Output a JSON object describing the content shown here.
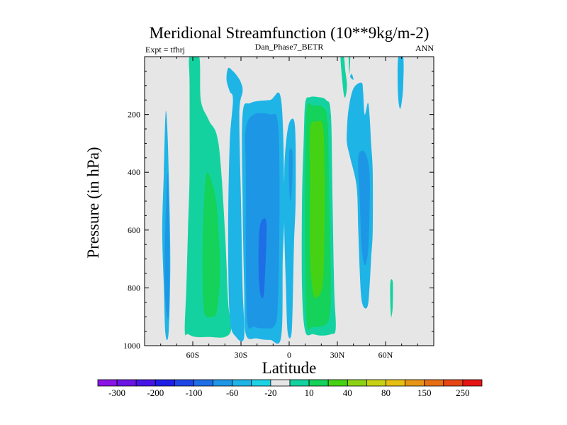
{
  "chart_data": {
    "type": "contour",
    "title": "Meridional Streamfunction (10**9kg/m-2)",
    "left_label": "Expt = tfhrj",
    "subtitle": "Dan_Phase7_BETR",
    "right_label": "ANN",
    "xlabel": "Latitude",
    "ylabel": "Pressure (in hPa)",
    "xlim": [
      -90,
      90
    ],
    "ylim": [
      1000,
      0
    ],
    "x_ticks": [
      {
        "value": -60,
        "label": "60S"
      },
      {
        "value": -30,
        "label": "30S"
      },
      {
        "value": 0,
        "label": "0"
      },
      {
        "value": 30,
        "label": "30N"
      },
      {
        "value": 60,
        "label": "60N"
      }
    ],
    "y_ticks": [
      {
        "value": 200,
        "label": "200"
      },
      {
        "value": 400,
        "label": "400"
      },
      {
        "value": 600,
        "label": "600"
      },
      {
        "value": 800,
        "label": "800"
      },
      {
        "value": 1000,
        "label": "1000"
      }
    ],
    "background_color": "#e6e6e6",
    "colorbar": {
      "colors": [
        "#8a14e6",
        "#6a14e6",
        "#4614e6",
        "#1e1ee6",
        "#1e46e6",
        "#1e6ee6",
        "#1e96e6",
        "#1eb4e6",
        "#1ed2e6",
        "#e6e6e6",
        "#14d2a0",
        "#14d25a",
        "#46d214",
        "#8cd214",
        "#c8d214",
        "#e6be14",
        "#e69614",
        "#e66e14",
        "#e64614",
        "#e61414"
      ],
      "tick_labels": [
        "-300",
        "-200",
        "-100",
        "-60",
        "-20",
        "10",
        "40",
        "80",
        "150",
        "250"
      ],
      "tick_after_box": [
        1,
        3,
        5,
        7,
        9,
        11,
        13,
        15,
        17,
        19
      ]
    },
    "contours": [
      {
        "name": "contour-sh-polar-neg",
        "color": "#1eb4e6",
        "points": [
          [
            -77,
            960
          ],
          [
            -75,
            950
          ],
          [
            -74,
            700
          ],
          [
            -75,
            400
          ],
          [
            -76,
            230
          ],
          [
            -77,
            200
          ],
          [
            -78,
            400
          ],
          [
            -79,
            600
          ],
          [
            -78,
            800
          ]
        ]
      },
      {
        "name": "contour-sh-polar-neg-core",
        "color": "#1e96e6",
        "points": [
          [
            -75,
            900
          ],
          [
            -74.5,
            700
          ],
          [
            -75,
            500
          ],
          [
            -75.5,
            400
          ],
          [
            -76.5,
            500
          ],
          [
            -77.5,
            700
          ],
          [
            -77,
            850
          ]
        ]
      },
      {
        "name": "contour-sh-positive-outer",
        "color": "#14d2a0",
        "points": [
          [
            -62,
            0
          ],
          [
            -56,
            0
          ],
          [
            -55,
            150
          ],
          [
            -50,
            220
          ],
          [
            -44,
            300
          ],
          [
            -40,
            600
          ],
          [
            -38,
            850
          ],
          [
            -36,
            940
          ],
          [
            -40,
            970
          ],
          [
            -50,
            970
          ],
          [
            -58,
            970
          ],
          [
            -63,
            960
          ],
          [
            -65,
            950
          ],
          [
            -64,
            800
          ],
          [
            -63,
            600
          ],
          [
            -62,
            400
          ],
          [
            -62,
            100
          ]
        ]
      },
      {
        "name": "contour-sh-positive-inner",
        "color": "#14d25a",
        "points": [
          [
            -51,
            400
          ],
          [
            -46,
            480
          ],
          [
            -44,
            600
          ],
          [
            -43,
            750
          ],
          [
            -45,
            880
          ],
          [
            -48,
            900
          ],
          [
            -53,
            880
          ],
          [
            -54,
            700
          ],
          [
            -53,
            500
          ]
        ]
      },
      {
        "name": "contour-sh-upper-neg",
        "color": "#1eb4e6",
        "points": [
          [
            -38,
            40
          ],
          [
            -35,
            50
          ],
          [
            -32,
            70
          ],
          [
            -30,
            90
          ],
          [
            -29,
            120
          ],
          [
            -31,
            200
          ],
          [
            -30,
            500
          ],
          [
            -29,
            800
          ],
          [
            -28,
            970
          ],
          [
            -33,
            970
          ],
          [
            -37,
            900
          ],
          [
            -38,
            600
          ],
          [
            -37,
            300
          ],
          [
            -35,
            150
          ],
          [
            -37,
            120
          ],
          [
            -39,
            80
          ]
        ]
      },
      {
        "name": "contour-hadley-neg-outer",
        "color": "#1eb4e6",
        "points": [
          [
            -29,
            200
          ],
          [
            -24,
            160
          ],
          [
            -12,
            150
          ],
          [
            -5,
            150
          ],
          [
            -3,
            500
          ],
          [
            -4,
            700
          ],
          [
            -5,
            970
          ],
          [
            -12,
            980
          ],
          [
            -20,
            975
          ],
          [
            -27,
            960
          ],
          [
            -28,
            800
          ],
          [
            -29,
            500
          ]
        ]
      },
      {
        "name": "contour-hadley-neg-mid",
        "color": "#1e96e6",
        "points": [
          [
            -27,
            250
          ],
          [
            -22,
            200
          ],
          [
            -12,
            200
          ],
          [
            -7,
            230
          ],
          [
            -6,
            500
          ],
          [
            -7,
            850
          ],
          [
            -9,
            930
          ],
          [
            -15,
            940
          ],
          [
            -22,
            935
          ],
          [
            -26,
            920
          ],
          [
            -27,
            700
          ],
          [
            -27,
            400
          ]
        ]
      },
      {
        "name": "contour-hadley-neg-core",
        "color": "#1e6ee6",
        "points": [
          [
            -18,
            580
          ],
          [
            -15,
            560
          ],
          [
            -14,
            600
          ],
          [
            -15,
            750
          ],
          [
            -16,
            830
          ],
          [
            -18,
            820
          ],
          [
            -19,
            750
          ],
          [
            -19,
            650
          ]
        ]
      },
      {
        "name": "contour-equatorial-neg",
        "color": "#1eb4e6",
        "points": [
          [
            0,
            230
          ],
          [
            3,
            220
          ],
          [
            4,
            300
          ],
          [
            4,
            500
          ],
          [
            3,
            650
          ],
          [
            2,
            900
          ],
          [
            1,
            970
          ],
          [
            -1,
            950
          ],
          [
            -2,
            800
          ],
          [
            -3,
            600
          ],
          [
            -3,
            400
          ],
          [
            -2,
            300
          ]
        ]
      },
      {
        "name": "contour-equatorial-neg-core",
        "color": "#1e96e6",
        "points": [
          [
            0,
            330
          ],
          [
            2,
            330
          ],
          [
            2,
            420
          ],
          [
            1,
            500
          ],
          [
            0,
            450
          ]
        ]
      },
      {
        "name": "contour-nh-hadley-outer",
        "color": "#14d2a0",
        "points": [
          [
            10,
            160
          ],
          [
            13,
            140
          ],
          [
            18,
            140
          ],
          [
            23,
            150
          ],
          [
            26,
            200
          ],
          [
            27,
            500
          ],
          [
            28,
            800
          ],
          [
            29,
            940
          ],
          [
            26,
            960
          ],
          [
            20,
            965
          ],
          [
            15,
            960
          ],
          [
            10,
            950
          ],
          [
            8,
            800
          ],
          [
            8,
            500
          ],
          [
            9,
            300
          ]
        ]
      },
      {
        "name": "contour-nh-hadley-mid",
        "color": "#14d25a",
        "points": [
          [
            11,
            180
          ],
          [
            15,
            170
          ],
          [
            21,
            175
          ],
          [
            24,
            230
          ],
          [
            25,
            500
          ],
          [
            26,
            800
          ],
          [
            25,
            900
          ],
          [
            22,
            930
          ],
          [
            15,
            935
          ],
          [
            11,
            925
          ],
          [
            10,
            700
          ],
          [
            10,
            400
          ]
        ]
      },
      {
        "name": "contour-nh-hadley-core",
        "color": "#46d214",
        "points": [
          [
            13,
            250
          ],
          [
            17,
            225
          ],
          [
            21,
            240
          ],
          [
            22,
            400
          ],
          [
            22,
            600
          ],
          [
            21,
            780
          ],
          [
            18,
            830
          ],
          [
            15,
            820
          ],
          [
            13,
            700
          ],
          [
            13,
            450
          ]
        ]
      },
      {
        "name": "contour-nh-ferrel-neg",
        "color": "#1eb4e6",
        "points": [
          [
            37,
            180
          ],
          [
            40,
            110
          ],
          [
            45,
            90
          ],
          [
            46,
            120
          ],
          [
            47,
            200
          ],
          [
            49,
            160
          ],
          [
            50,
            200
          ],
          [
            51,
            300
          ],
          [
            52,
            400
          ],
          [
            52,
            600
          ],
          [
            51,
            700
          ],
          [
            50,
            800
          ],
          [
            49,
            860
          ],
          [
            47,
            870
          ],
          [
            45,
            840
          ],
          [
            44,
            750
          ],
          [
            43,
            600
          ],
          [
            42,
            450
          ],
          [
            38,
            350
          ],
          [
            36,
            300
          ],
          [
            36,
            250
          ]
        ]
      },
      {
        "name": "contour-nh-ferrel-core",
        "color": "#1e96e6",
        "points": [
          [
            43,
            350
          ],
          [
            47,
            330
          ],
          [
            50,
            400
          ],
          [
            50,
            550
          ],
          [
            49,
            680
          ],
          [
            47,
            720
          ],
          [
            45,
            650
          ],
          [
            44,
            500
          ]
        ]
      },
      {
        "name": "contour-nh-top-green",
        "color": "#14d2a0",
        "points": [
          [
            32,
            0
          ],
          [
            34,
            0
          ],
          [
            35,
            50
          ],
          [
            36,
            100
          ],
          [
            35,
            140
          ],
          [
            34,
            130
          ],
          [
            33,
            80
          ]
        ]
      },
      {
        "name": "contour-nh-top-green-2",
        "color": "#14d2a0",
        "points": [
          [
            37,
            0
          ],
          [
            38,
            0
          ],
          [
            37.5,
            60
          ]
        ]
      },
      {
        "name": "contour-nh-top-blue",
        "color": "#1eb4e6",
        "points": [
          [
            38,
            70
          ],
          [
            39,
            60
          ],
          [
            40,
            80
          ]
        ]
      },
      {
        "name": "contour-nh-polar-green",
        "color": "#14d2a0",
        "points": [
          [
            63,
            780
          ],
          [
            64.5,
            780
          ],
          [
            64.5,
            860
          ],
          [
            64,
            890
          ],
          [
            63.5,
            900
          ],
          [
            63,
            860
          ]
        ]
      },
      {
        "name": "contour-nh-polar-blue",
        "color": "#1eb4e6",
        "points": [
          [
            68,
            0
          ],
          [
            71,
            0
          ],
          [
            71,
            100
          ],
          [
            70,
            160
          ],
          [
            69,
            180
          ],
          [
            68,
            150
          ],
          [
            67.5,
            80
          ]
        ]
      }
    ]
  }
}
